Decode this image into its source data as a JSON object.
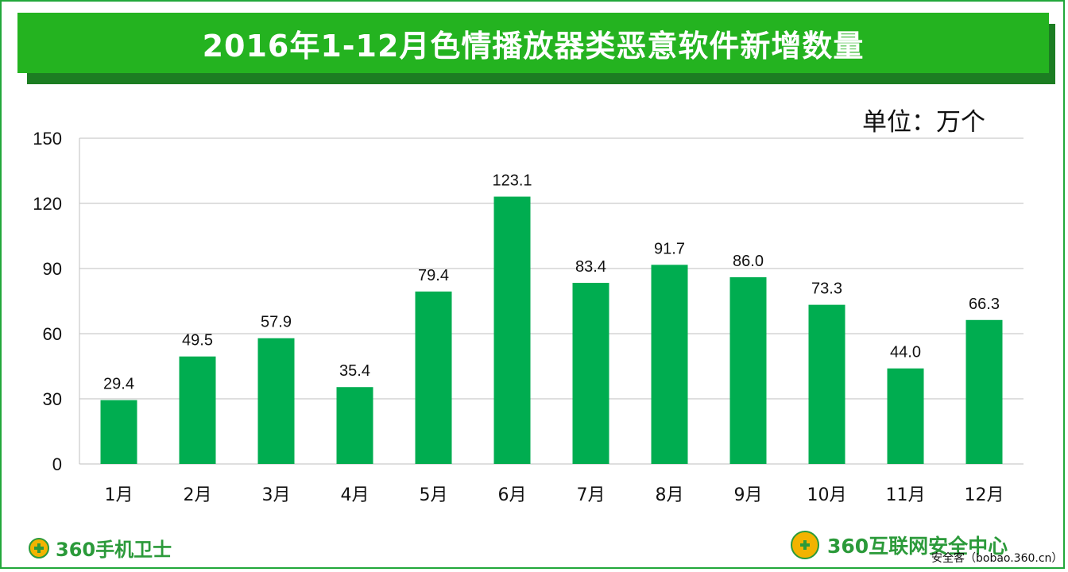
{
  "title": "2016年1-12月色情播放器类恶意软件新增数量",
  "unit_label": "单位：万个",
  "footer": {
    "left_logo_text": "360手机卫士",
    "right_logo_text": "360互联网安全中心",
    "watermark": "安全客（bobao.360.cn）"
  },
  "colors": {
    "bar": "#00ad50",
    "title_bg": "#24b320",
    "grid": "#bfbfbf"
  },
  "chart_data": {
    "type": "bar",
    "categories": [
      "1月",
      "2月",
      "3月",
      "4月",
      "5月",
      "6月",
      "7月",
      "8月",
      "9月",
      "10月",
      "11月",
      "12月"
    ],
    "values": [
      29.4,
      49.5,
      57.9,
      35.4,
      79.4,
      123.1,
      83.4,
      91.7,
      86.0,
      73.3,
      44.0,
      66.3
    ],
    "value_labels": [
      "29.4",
      "49.5",
      "57.9",
      "35.4",
      "79.4",
      "123.1",
      "83.4",
      "91.7",
      "86.0",
      "73.3",
      "44.0",
      "66.3"
    ],
    "yticks": [
      0,
      30,
      60,
      90,
      120,
      150
    ],
    "ylim": [
      0,
      150
    ],
    "grid": true,
    "title": "2016年1-12月色情播放器类恶意软件新增数量",
    "xlabel": "",
    "ylabel": ""
  }
}
